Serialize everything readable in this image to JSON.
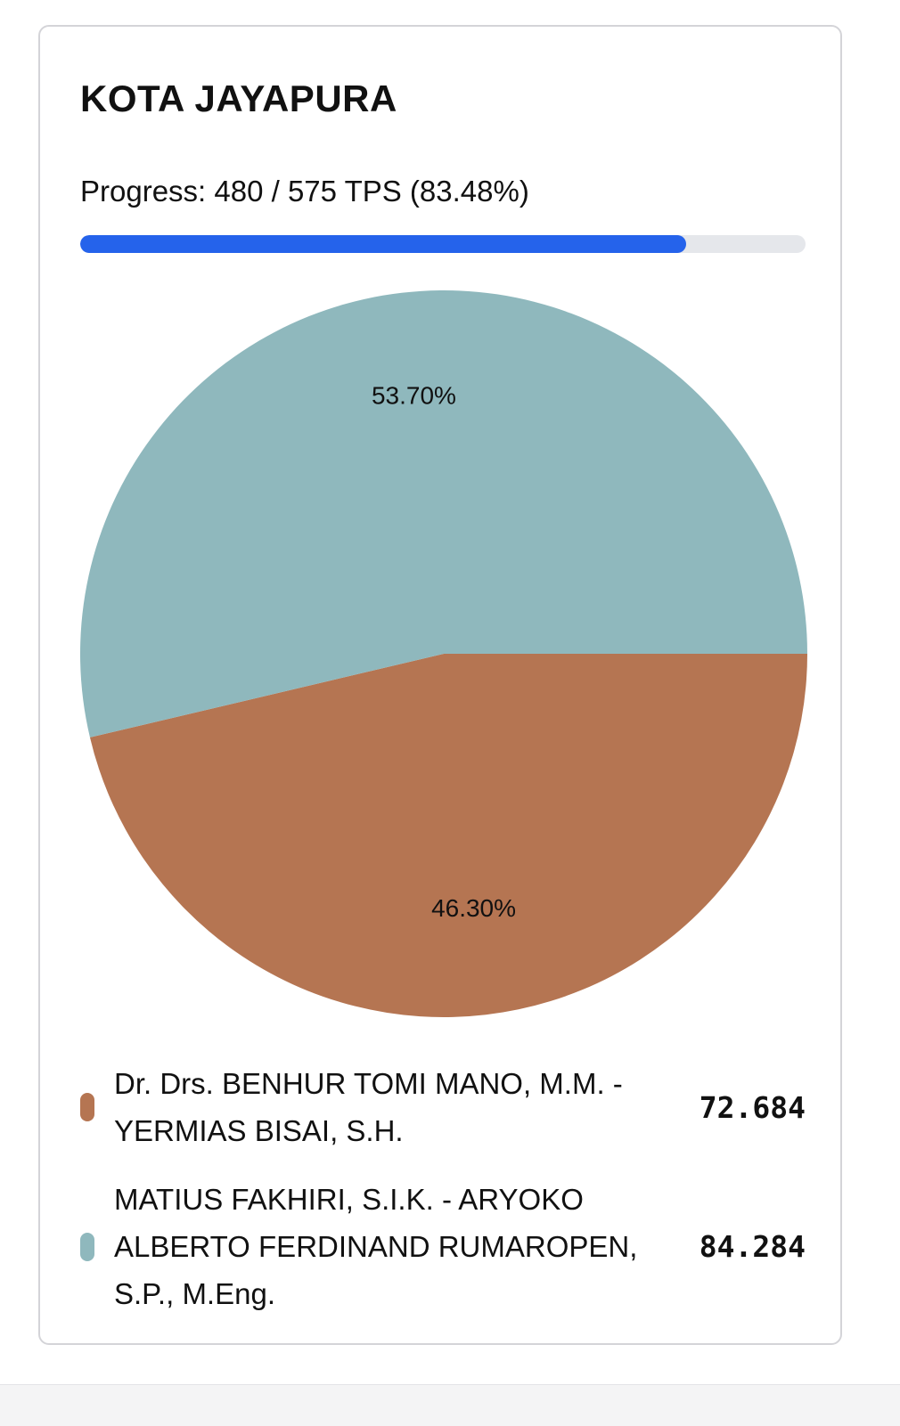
{
  "card": {
    "title": "KOTA JAYAPURA",
    "progress_text": "Progress: 480 / 575 TPS (83.48%)",
    "progress_fraction": 0.8348
  },
  "colors": {
    "progress_fill": "#2563eb",
    "progress_track": "#e5e7eb",
    "slice_1": "#b57552",
    "slice_2": "#8fb8bd"
  },
  "chart_data": {
    "type": "pie",
    "title": "",
    "slices": [
      {
        "name": "Dr. Drs. BENHUR TOMI MANO, M.M. - YERMIAS BISAI, S.H.",
        "value": 72684,
        "value_label": "72.684",
        "percent": 46.3,
        "percent_label": "46.30%",
        "color": "#b57552"
      },
      {
        "name": "MATIUS FAKHIRI, S.I.K. - ARYOKO ALBERTO FERDINAND RUMAROPEN, S.P., M.Eng.",
        "value": 84284,
        "value_label": "84.284",
        "percent": 53.7,
        "percent_label": "53.70%",
        "color": "#8fb8bd"
      }
    ],
    "legend_position": "bottom"
  }
}
